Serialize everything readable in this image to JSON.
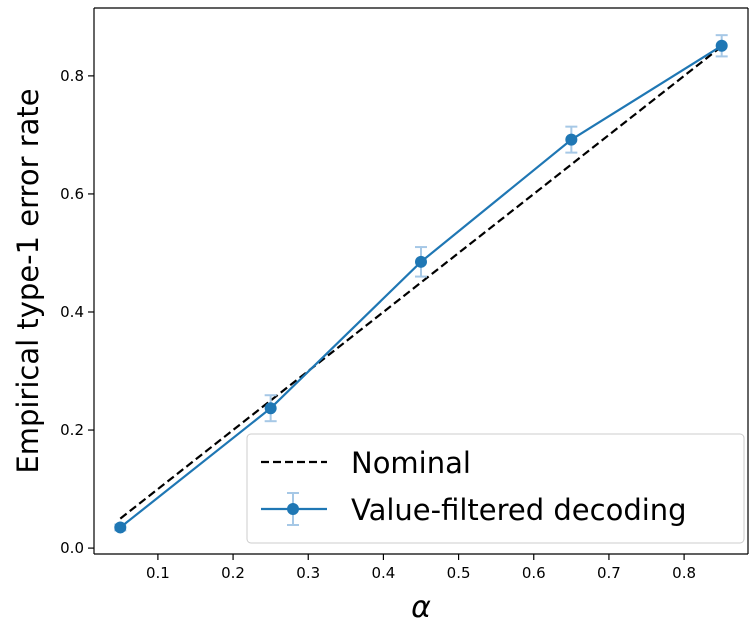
{
  "chart_data": {
    "type": "line",
    "title": "",
    "xlabel": "α",
    "ylabel": "Empirical type-1 error rate",
    "xlim": [
      0.015,
      0.885
    ],
    "ylim": [
      -0.01,
      0.915
    ],
    "x_ticks": [
      0.1,
      0.2,
      0.3,
      0.4,
      0.5,
      0.6,
      0.7,
      0.8
    ],
    "x_tick_labels": [
      "0.1",
      "0.2",
      "0.3",
      "0.4",
      "0.5",
      "0.6",
      "0.7",
      "0.8"
    ],
    "y_ticks": [
      0.0,
      0.2,
      0.4,
      0.6,
      0.8
    ],
    "y_tick_labels": [
      "0.0",
      "0.2",
      "0.4",
      "0.6",
      "0.8"
    ],
    "grid": false,
    "legend_position": "lower-right",
    "series": [
      {
        "name": "Nominal",
        "style": "dashed",
        "color": "#000000",
        "x": [
          0.05,
          0.85
        ],
        "y": [
          0.05,
          0.85
        ]
      },
      {
        "name": "Value-filtered decoding",
        "style": "solid-markers",
        "color": "#1f77b4",
        "errorbar_color": "#a6c8e6",
        "x": [
          0.05,
          0.25,
          0.45,
          0.65,
          0.85
        ],
        "y": [
          0.035,
          0.237,
          0.485,
          0.692,
          0.851
        ],
        "err": [
          0.005,
          0.022,
          0.025,
          0.022,
          0.018
        ]
      }
    ]
  }
}
